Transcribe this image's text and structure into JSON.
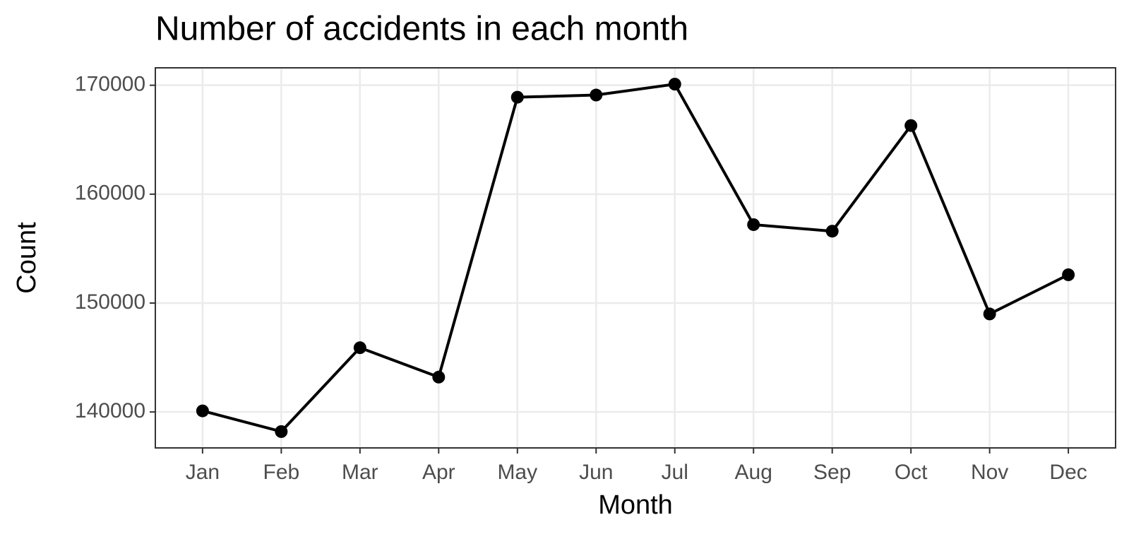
{
  "chart_data": {
    "type": "line",
    "title": "Number of accidents in each month",
    "x_label": "Month",
    "y_label": "Count",
    "categories": [
      "Jan",
      "Feb",
      "Mar",
      "Apr",
      "May",
      "Jun",
      "Jul",
      "Aug",
      "Sep",
      "Oct",
      "Nov",
      "Dec"
    ],
    "series": [
      {
        "name": "Count",
        "color": "#000000",
        "values": [
          140100,
          138200,
          145900,
          143200,
          168900,
          169100,
          170100,
          157200,
          156600,
          166300,
          149000,
          152600
        ]
      }
    ],
    "ylim": [
      136700,
      171600
    ],
    "yticks": [
      140000,
      150000,
      160000,
      170000
    ],
    "grid": true
  }
}
